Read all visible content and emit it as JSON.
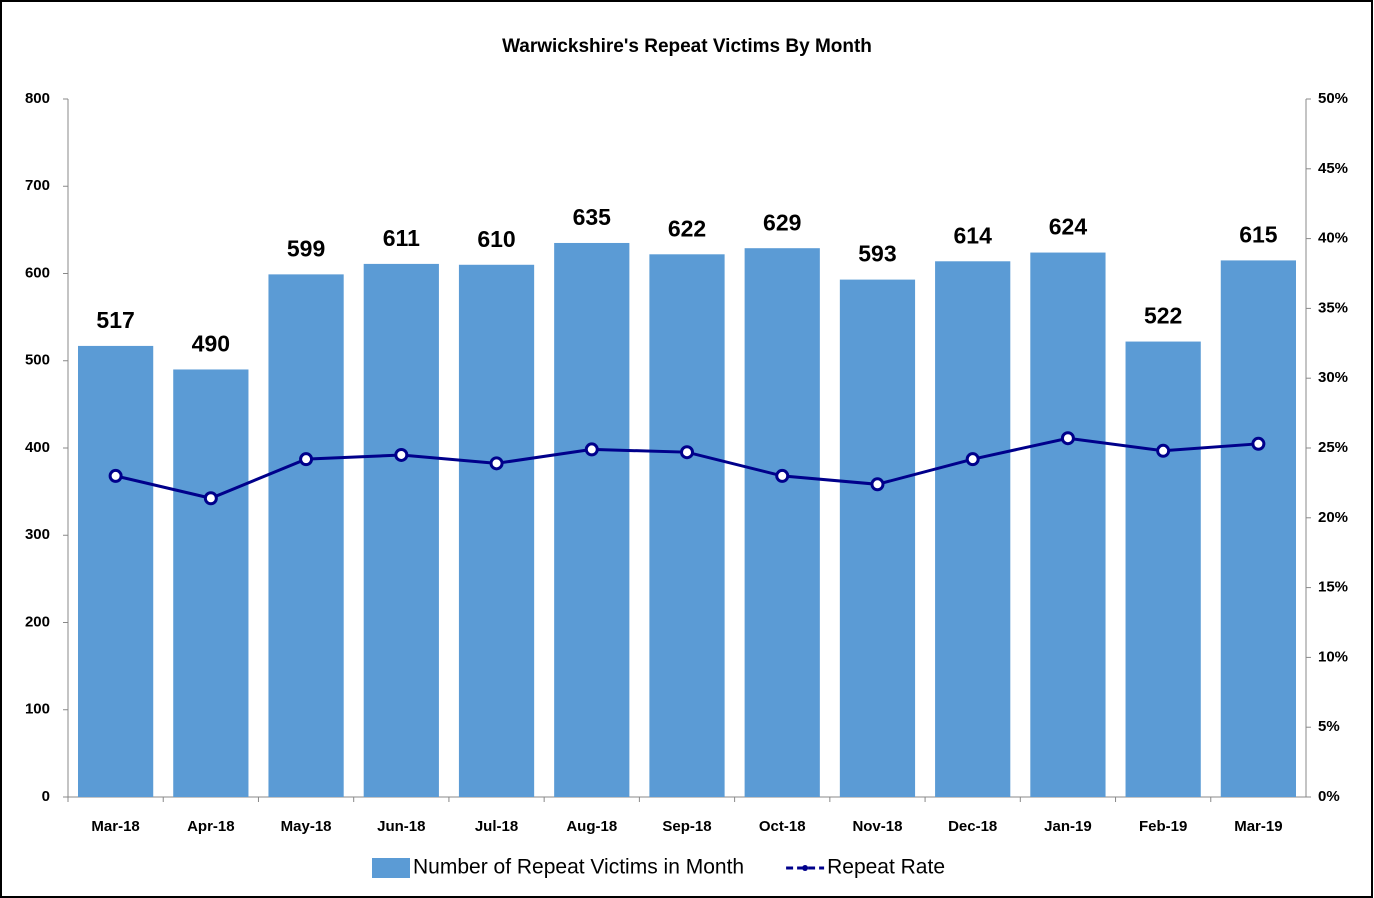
{
  "chart_data": {
    "type": "bar_line",
    "title": "Warwickshire's Repeat Victims By Month",
    "categories": [
      "Mar-18",
      "Apr-18",
      "May-18",
      "Jun-18",
      "Jul-18",
      "Aug-18",
      "Sep-18",
      "Oct-18",
      "Nov-18",
      "Dec-18",
      "Jan-19",
      "Feb-19",
      "Mar-19"
    ],
    "series": [
      {
        "name": "Number of Repeat Victims in Month",
        "color": "#5b9bd5",
        "type": "bar",
        "values": [
          517,
          490,
          599,
          611,
          610,
          635,
          622,
          629,
          593,
          614,
          624,
          522,
          615
        ]
      },
      {
        "name": "Repeat Rate",
        "color": "#00008b",
        "type": "line",
        "axis": "y2",
        "values": [
          23.0,
          21.4,
          24.2,
          24.5,
          23.9,
          24.9,
          24.7,
          23.0,
          22.4,
          24.2,
          25.7,
          24.8,
          25.3
        ]
      }
    ],
    "ylim": [
      0,
      800
    ],
    "yticks": [
      0,
      100,
      200,
      300,
      400,
      500,
      600,
      700,
      800
    ],
    "y2lim": [
      0,
      50
    ],
    "y2ticks": [
      {
        "value": 0,
        "label": "0%"
      },
      {
        "value": 5,
        "label": "5%"
      },
      {
        "value": 10,
        "label": "10%"
      },
      {
        "value": 15,
        "label": "15%"
      },
      {
        "value": 20,
        "label": "20%"
      },
      {
        "value": 25,
        "label": "25%"
      },
      {
        "value": 30,
        "label": "30%"
      },
      {
        "value": 35,
        "label": "35%"
      },
      {
        "value": 40,
        "label": "40%"
      },
      {
        "value": 45,
        "label": "45%"
      },
      {
        "value": 50,
        "label": "50%"
      }
    ],
    "legend": "bottom"
  }
}
